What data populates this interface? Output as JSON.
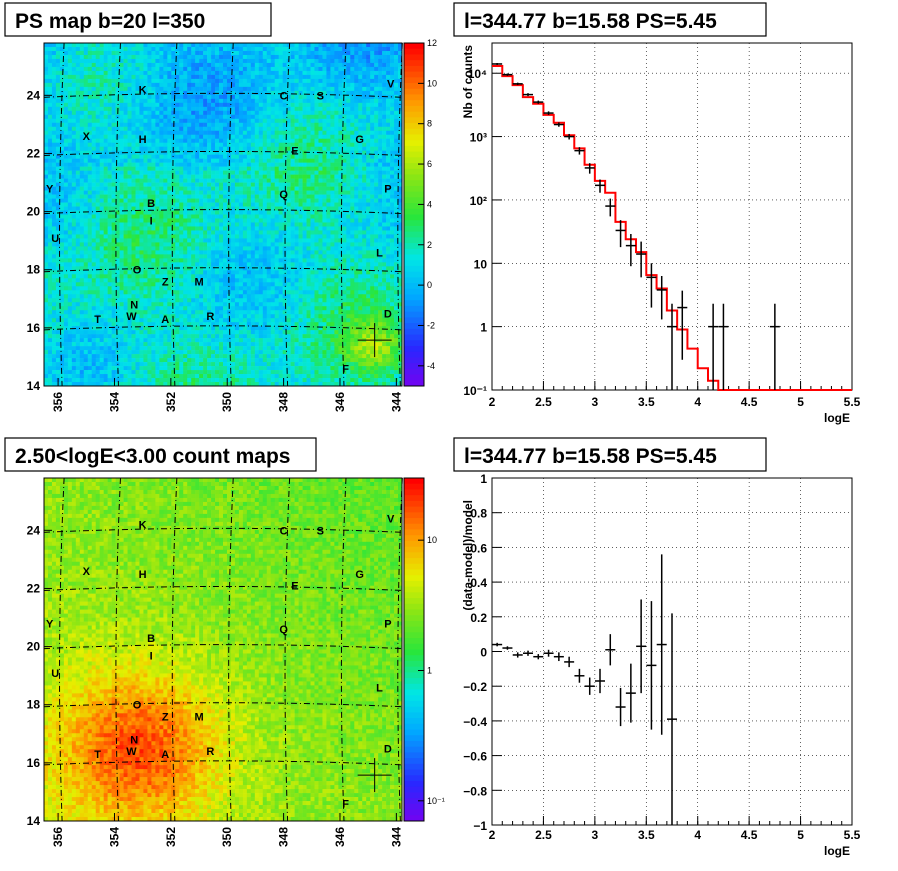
{
  "chart_data": [
    {
      "type": "heatmap",
      "title": "PS map b=20 l=350",
      "x_ticks": [
        "356",
        "354",
        "352",
        "350",
        "348",
        "346",
        "344"
      ],
      "y_ticks": [
        "14",
        "16",
        "18",
        "20",
        "22",
        "24"
      ],
      "xlim": [
        356.5,
        343.8
      ],
      "ylim": [
        14,
        25.8
      ],
      "colorbar": {
        "scale": "linear",
        "range": [
          -5,
          12
        ],
        "ticks": [
          "12",
          "10",
          "8",
          "6",
          "4",
          "2",
          "0",
          "-2",
          "-4"
        ]
      },
      "sources": [
        {
          "label": "K",
          "l": 353.0,
          "b": 24.2
        },
        {
          "label": "C",
          "l": 348.0,
          "b": 24.0
        },
        {
          "label": "S",
          "l": 346.7,
          "b": 24.0
        },
        {
          "label": "V",
          "l": 344.2,
          "b": 24.4
        },
        {
          "label": "X",
          "l": 355.0,
          "b": 22.6
        },
        {
          "label": "H",
          "l": 353.0,
          "b": 22.5
        },
        {
          "label": "E",
          "l": 347.6,
          "b": 22.1
        },
        {
          "label": "G",
          "l": 345.3,
          "b": 22.5
        },
        {
          "label": "Y",
          "l": 356.3,
          "b": 20.8
        },
        {
          "label": "B",
          "l": 352.7,
          "b": 20.3
        },
        {
          "label": "Q",
          "l": 348.0,
          "b": 20.6
        },
        {
          "label": "P",
          "l": 344.3,
          "b": 20.8
        },
        {
          "label": "I",
          "l": 352.7,
          "b": 19.7
        },
        {
          "label": "U",
          "l": 356.1,
          "b": 19.1
        },
        {
          "label": "L",
          "l": 344.6,
          "b": 18.6
        },
        {
          "label": "O",
          "l": 353.2,
          "b": 18.0
        },
        {
          "label": "Z",
          "l": 352.2,
          "b": 17.6
        },
        {
          "label": "M",
          "l": 351.0,
          "b": 17.6
        },
        {
          "label": "N",
          "l": 353.3,
          "b": 16.8
        },
        {
          "label": "W",
          "l": 353.4,
          "b": 16.4
        },
        {
          "label": "T",
          "l": 354.6,
          "b": 16.3
        },
        {
          "label": "A",
          "l": 352.2,
          "b": 16.3
        },
        {
          "label": "R",
          "l": 350.6,
          "b": 16.4
        },
        {
          "label": "D",
          "l": 344.3,
          "b": 16.5
        },
        {
          "label": "F",
          "l": 345.8,
          "b": 14.6
        }
      ],
      "marker": {
        "l": 344.77,
        "b": 15.58
      }
    },
    {
      "type": "line",
      "title": "l=344.77 b=15.58 PS=5.45",
      "xlabel": "logE",
      "ylabel": "Nb of counts",
      "xlim": [
        2,
        5.5
      ],
      "ylim": [
        0.1,
        30000
      ],
      "y_scale": "log",
      "x_ticks": [
        "2",
        "2.5",
        "3",
        "3.5",
        "4",
        "4.5",
        "5",
        "5.5"
      ],
      "y_ticks": [
        "10⁻¹",
        "1",
        "10",
        "10²",
        "10³",
        "10⁴"
      ],
      "grid": true,
      "series": [
        {
          "style": "data-errorbars",
          "color": "#000000",
          "x": [
            2.05,
            2.15,
            2.25,
            2.35,
            2.45,
            2.55,
            2.65,
            2.75,
            2.85,
            2.95,
            3.05,
            3.15,
            3.25,
            3.35,
            3.45,
            3.55,
            3.65,
            3.75,
            3.85,
            4.15,
            4.25,
            4.75
          ],
          "y": [
            14000,
            9500,
            6800,
            4600,
            3500,
            2350,
            1550,
            1000,
            600,
            320,
            170,
            80,
            33,
            19,
            14,
            6,
            3.8,
            1,
            2,
            1,
            1,
            1
          ],
          "err_lo": [
            500,
            400,
            300,
            250,
            200,
            150,
            120,
            100,
            80,
            60,
            40,
            25,
            15,
            10,
            8,
            4,
            2.5,
            0.9,
            1.7,
            0.9,
            0.9,
            0.9
          ],
          "err_hi": [
            500,
            400,
            300,
            250,
            200,
            150,
            120,
            100,
            80,
            60,
            40,
            25,
            15,
            10,
            8,
            4,
            2.5,
            1.3,
            1.7,
            1.3,
            1.3,
            1.3
          ]
        },
        {
          "style": "step",
          "color": "#ff0000",
          "edges": [
            2.0,
            2.1,
            2.2,
            2.3,
            2.4,
            2.5,
            2.6,
            2.7,
            2.8,
            2.9,
            3.0,
            3.1,
            3.2,
            3.3,
            3.4,
            3.5,
            3.6,
            3.7,
            3.8,
            3.9,
            4.0,
            4.1,
            4.2,
            4.3,
            5.5
          ],
          "values": [
            13000,
            9000,
            6500,
            4200,
            3300,
            2200,
            1650,
            1050,
            650,
            360,
            200,
            130,
            45,
            24,
            15,
            6.5,
            4,
            1.8,
            0.9,
            0.45,
            0.22,
            0.14,
            0.1,
            0.1
          ]
        }
      ]
    },
    {
      "type": "heatmap",
      "title": "2.50<logE<3.00 count maps",
      "x_ticks": [
        "356",
        "354",
        "352",
        "350",
        "348",
        "346",
        "344"
      ],
      "y_ticks": [
        "14",
        "16",
        "18",
        "20",
        "22",
        "24"
      ],
      "xlim": [
        356.5,
        343.8
      ],
      "ylim": [
        14,
        25.8
      ],
      "colorbar": {
        "scale": "log",
        "range": [
          0.07,
          30
        ],
        "ticks": [
          "10",
          "1",
          "10⁻¹"
        ]
      },
      "sources_same_as_panel": 0,
      "marker": {
        "l": 344.77,
        "b": 15.58
      }
    },
    {
      "type": "scatter",
      "title": "l=344.77 b=15.58 PS=5.45",
      "xlabel": "logE",
      "ylabel": "(data-model)/model",
      "xlim": [
        2,
        5.5
      ],
      "ylim": [
        -1,
        1
      ],
      "x_ticks": [
        "2",
        "2.5",
        "3",
        "3.5",
        "4",
        "4.5",
        "5",
        "5.5"
      ],
      "y_ticks": [
        "1",
        "0.8",
        "0.6",
        "0.4",
        "0.2",
        "0",
        "−0.2",
        "−0.4",
        "−0.6",
        "−0.8",
        "−1"
      ],
      "grid": true,
      "series": [
        {
          "style": "data-errorbars",
          "color": "#000000",
          "x": [
            2.05,
            2.15,
            2.25,
            2.35,
            2.45,
            2.55,
            2.65,
            2.75,
            2.85,
            2.95,
            3.05,
            3.15,
            3.25,
            3.35,
            3.45,
            3.55,
            3.65,
            3.75
          ],
          "y": [
            0.04,
            0.02,
            -0.02,
            -0.01,
            -0.03,
            -0.01,
            -0.03,
            -0.06,
            -0.14,
            -0.2,
            -0.17,
            0.01,
            -0.32,
            -0.24,
            0.03,
            -0.08,
            0.04,
            -0.39
          ],
          "err": [
            0.01,
            0.01,
            0.015,
            0.015,
            0.015,
            0.02,
            0.025,
            0.03,
            0.04,
            0.05,
            0.07,
            0.09,
            0.11,
            0.17,
            0.27,
            0.37,
            0.52,
            0.61
          ]
        }
      ]
    }
  ]
}
